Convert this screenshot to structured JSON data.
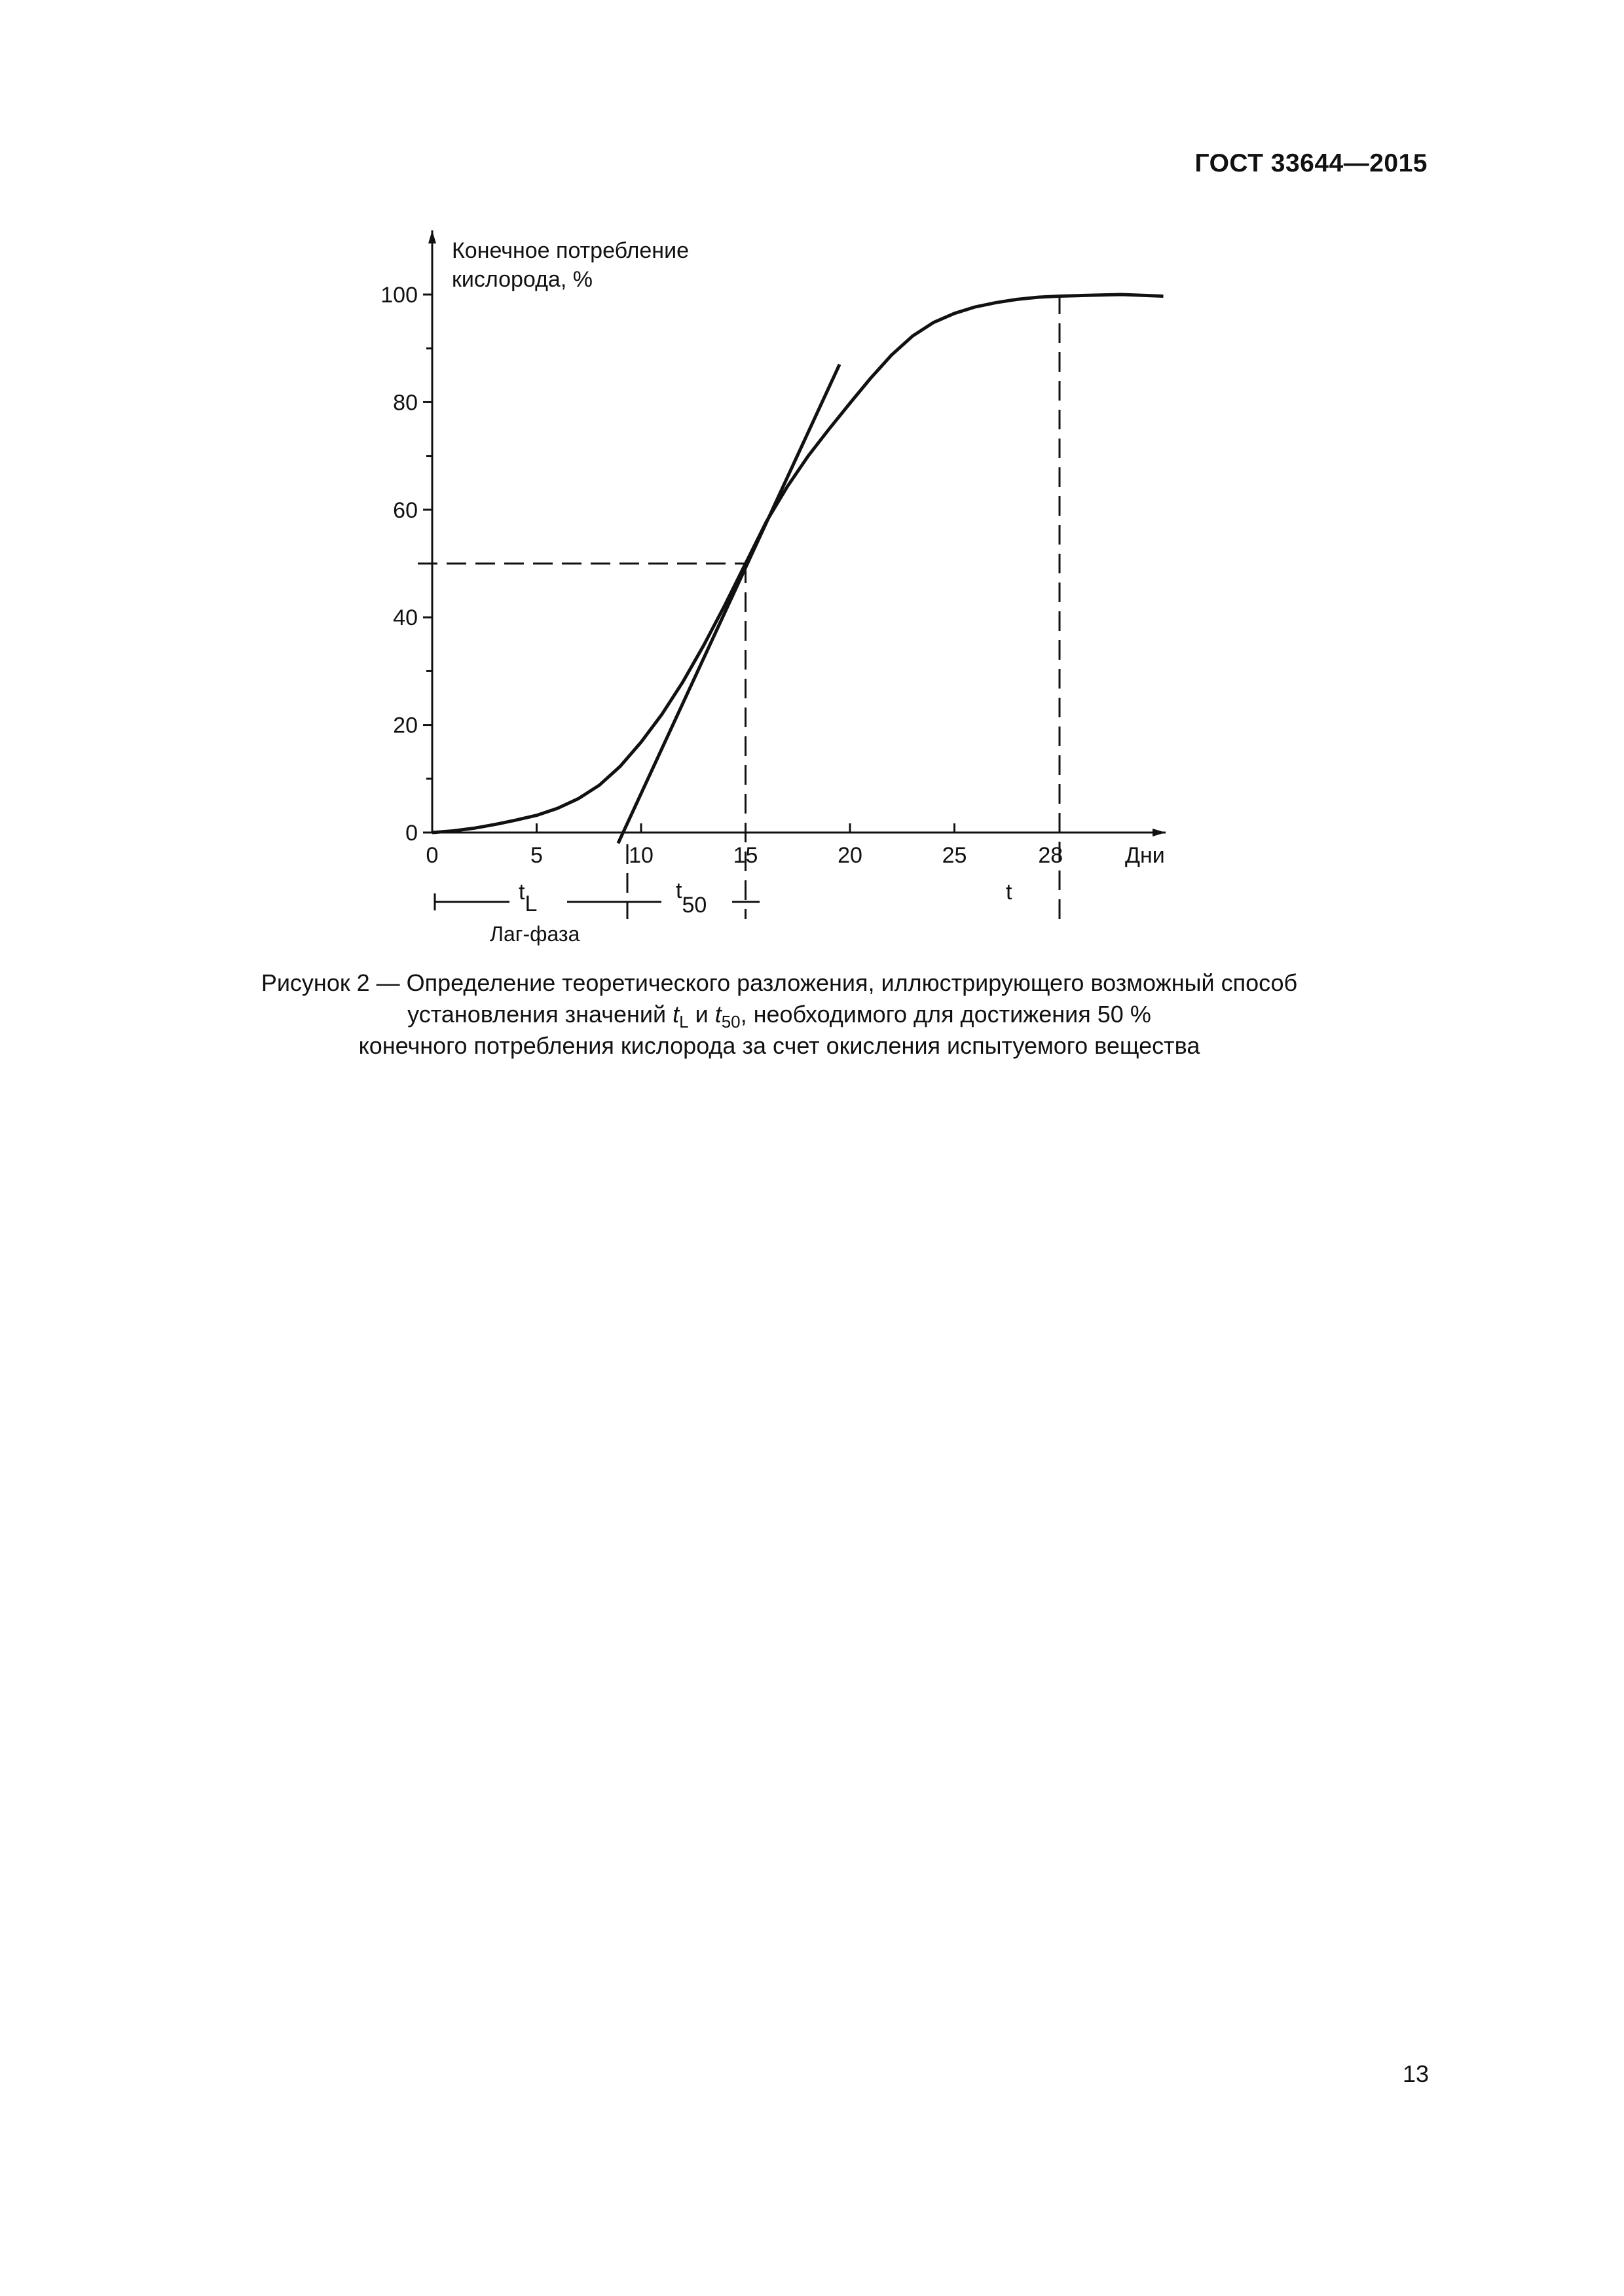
{
  "header": {
    "doc_code": "ГОСТ 33644—2015"
  },
  "chart_data": {
    "type": "line",
    "ylabel_line1": "Конечное потребление",
    "ylabel_line2": "кислорода, %",
    "xlabel": "Дни",
    "x_ticks": [
      0,
      5,
      10,
      15,
      20,
      25
    ],
    "x_tick_extra": "28",
    "y_ticks": [
      0,
      20,
      40,
      60,
      80,
      100
    ],
    "xlim": [
      0,
      34.5
    ],
    "ylim": [
      0,
      110
    ],
    "grid": false,
    "series": [
      {
        "x": [
          0,
          1,
          2,
          3,
          4,
          5,
          6,
          7,
          8,
          9,
          10,
          11,
          12,
          13,
          14,
          15,
          16,
          17,
          18,
          19,
          20,
          21,
          22,
          23,
          24,
          25,
          26,
          27,
          28,
          29,
          30,
          31,
          32,
          33,
          35
        ],
        "y": [
          0,
          0.3,
          0.8,
          1.5,
          2.3,
          3.2,
          4.5,
          6.3,
          8.8,
          12.3,
          16.8,
          22.0,
          28.0,
          34.8,
          42.2,
          50.0,
          57.8,
          64.3,
          70.0,
          75.0,
          79.8,
          84.5,
          88.8,
          92.3,
          94.8,
          96.5,
          97.7,
          98.5,
          99.1,
          99.5,
          99.7,
          99.8,
          99.9,
          100.0,
          99.7
        ]
      }
    ],
    "tangent": {
      "x": [
        8.9,
        19.5
      ],
      "y": [
        -2,
        87
      ]
    },
    "reference_lines": {
      "y50": 50,
      "x50": 15,
      "x_end": 28
    },
    "annotations": {
      "tl_main": "t",
      "tl_sub": "L",
      "t50_main": "t",
      "t50_sub": "50",
      "t_end": "t",
      "lag_phase": "Лаг-фаза"
    }
  },
  "caption": {
    "line1": "Рисунок 2 — Определение теоретического разложения, иллюстрирующего возможный способ",
    "line2_a": "установления значений ",
    "tl_main": "t",
    "tl_sub": "L",
    "line2_b": " и ",
    "t50_main": "t",
    "t50_sub": "50",
    "line2_c": ", необходимого для достижения 50 %",
    "line3": "конечного потребления кислорода за счет окисления испытуемого вещества"
  },
  "page_number": "13"
}
